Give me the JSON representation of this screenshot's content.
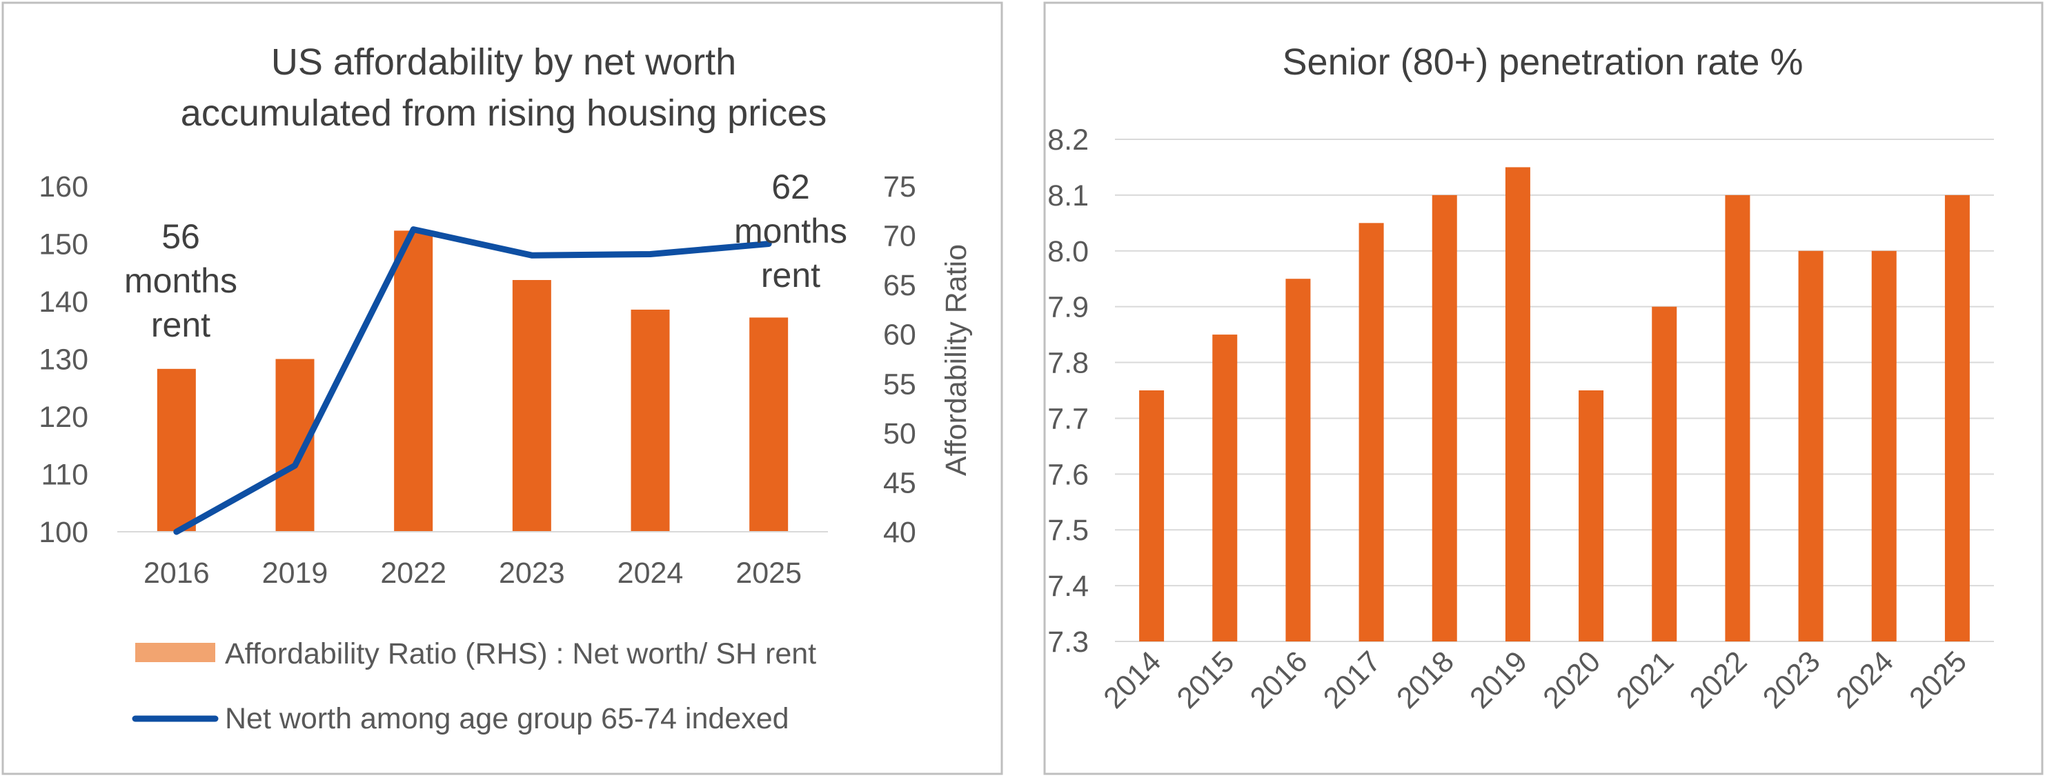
{
  "colors": {
    "bar": "#E8651E",
    "legend_bar": "#F2A470",
    "line": "#0E4FA3",
    "grid": "#D9D9D9",
    "frame": "#BFBFBF"
  },
  "chart_data": [
    {
      "type": "bar",
      "title_lines": [
        "US affordability by net worth",
        "accumulated from rising housing prices"
      ],
      "categories": [
        "2016",
        "2019",
        "2022",
        "2023",
        "2024",
        "2025"
      ],
      "left_axis": {
        "ylim": [
          100,
          160
        ],
        "ticks": [
          "100",
          "110",
          "120",
          "130",
          "140",
          "150",
          "160"
        ]
      },
      "right_axis": {
        "label": "Affordability Ratio",
        "ylim": [
          40,
          75
        ],
        "ticks": [
          "40",
          "45",
          "50",
          "55",
          "60",
          "65",
          "70",
          "75"
        ]
      },
      "series": [
        {
          "name": "Affordability Ratio (RHS) : Net worth/ SH rent",
          "kind": "bar",
          "axis": "right",
          "values": [
            56.5,
            57.5,
            70.5,
            65.5,
            62.5,
            61.7
          ]
        },
        {
          "name": "Net worth among age group 65-74 indexed",
          "kind": "line",
          "axis": "left",
          "values": [
            100,
            111.5,
            152.5,
            148,
            148.2,
            150
          ]
        }
      ],
      "annotations": [
        {
          "lines": [
            "56",
            "months",
            "rent"
          ]
        },
        {
          "lines": [
            "62",
            "months",
            "rent"
          ]
        }
      ],
      "grid": false,
      "legend_position": "bottom"
    },
    {
      "type": "bar",
      "title": "Senior (80+) penetration rate %",
      "categories": [
        "2014",
        "2015",
        "2016",
        "2017",
        "2018",
        "2019",
        "2020",
        "2021",
        "2022",
        "2023",
        "2024",
        "2025"
      ],
      "values": [
        7.75,
        7.85,
        7.95,
        8.05,
        8.1,
        8.15,
        7.75,
        7.9,
        8.1,
        8.0,
        8.0,
        8.1
      ],
      "ylim": [
        7.3,
        8.2
      ],
      "yticks": [
        "7.3",
        "7.4",
        "7.5",
        "7.6",
        "7.7",
        "7.8",
        "7.9",
        "8.0",
        "8.1",
        "8.2"
      ],
      "grid": true
    }
  ]
}
